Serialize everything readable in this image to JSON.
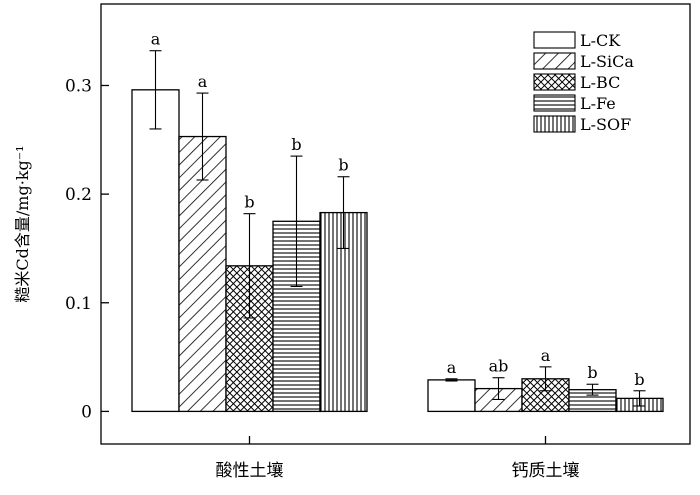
{
  "chart_data": {
    "type": "bar",
    "title": "",
    "xlabel": "",
    "ylabel": "糙米Cd含量/mg·kg⁻¹",
    "categories": [
      "酸性土壤",
      "钙质土壤"
    ],
    "ylim": [
      -0.03,
      0.375
    ],
    "yticks": [
      0,
      0.1,
      0.2,
      0.3
    ],
    "ytick_labels": [
      "0",
      "0.1",
      "0.2",
      "0.3"
    ],
    "legend_position": "top-right",
    "series": [
      {
        "name": "L-CK",
        "pattern": "none",
        "values": [
          0.296,
          0.029
        ],
        "errors": [
          0.036,
          0.001
        ],
        "significance": [
          "a",
          "a"
        ]
      },
      {
        "name": "L-SiCa",
        "pattern": "diagonal",
        "values": [
          0.253,
          0.021
        ],
        "errors": [
          0.04,
          0.01
        ],
        "significance": [
          "a",
          "ab"
        ]
      },
      {
        "name": "L-BC",
        "pattern": "crosshatch",
        "values": [
          0.134,
          0.03
        ],
        "errors": [
          0.048,
          0.011
        ],
        "significance": [
          "b",
          "a"
        ]
      },
      {
        "name": "L-Fe",
        "pattern": "horizontal",
        "values": [
          0.175,
          0.02
        ],
        "errors": [
          0.06,
          0.005
        ],
        "significance": [
          "b",
          "b"
        ]
      },
      {
        "name": "L-SOF",
        "pattern": "vertical",
        "values": [
          0.183,
          0.012
        ],
        "errors": [
          0.033,
          0.007
        ],
        "significance": [
          "b",
          "b"
        ]
      }
    ]
  }
}
